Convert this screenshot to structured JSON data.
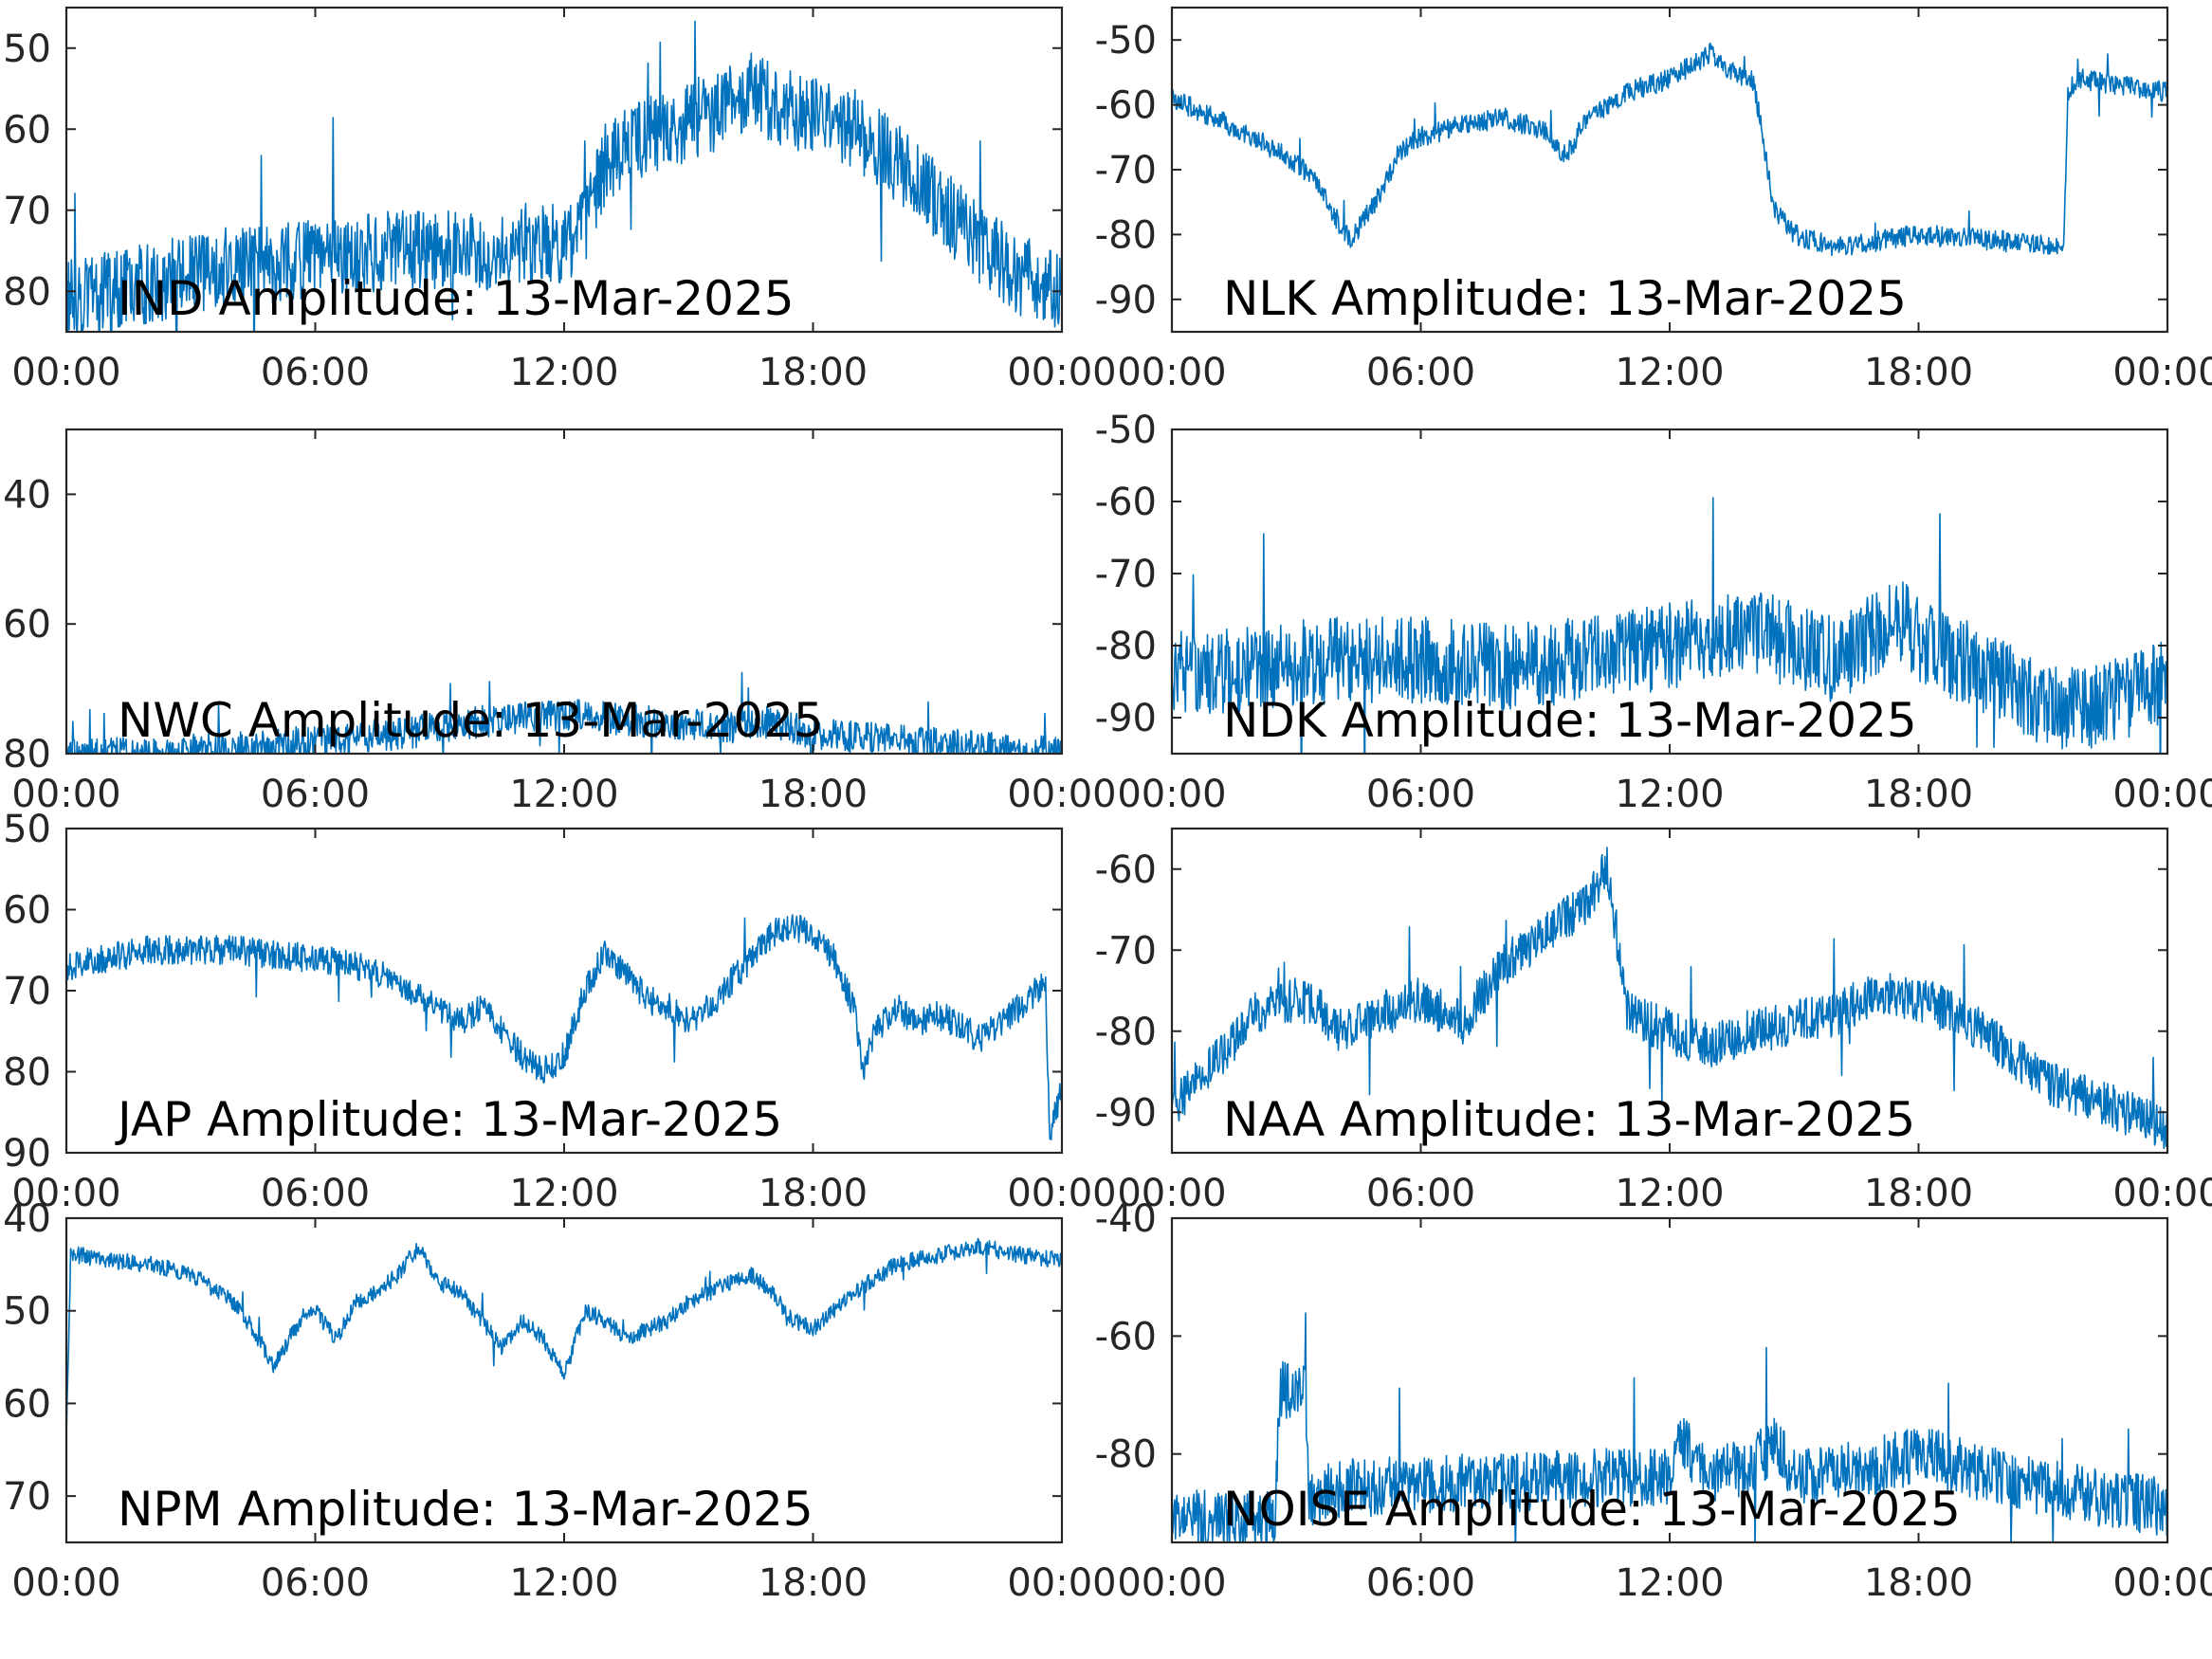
{
  "figure": {
    "line_color": "#0072BD",
    "axis_color": "#262626",
    "panel_background": "#ffffff"
  },
  "chart_data": [
    {
      "type": "line",
      "label": "IND Amplitude: 13-Mar-2025",
      "xticks": [
        "00:00",
        "06:00",
        "12:00",
        "18:00",
        "00:00"
      ],
      "xlim_hours": [
        0,
        24
      ],
      "yticks": [
        "50",
        "60",
        "70",
        "80"
      ],
      "ylim": [
        -85,
        -45
      ],
      "noise": 5,
      "x": [
        0,
        2,
        4,
        6,
        8,
        10,
        11,
        12,
        12.5,
        13,
        13.5,
        14,
        15,
        16,
        16.5,
        17,
        18,
        19,
        20,
        21,
        22,
        23,
        24
      ],
      "y": [
        -81,
        -79,
        -77,
        -76,
        -75,
        -75,
        -74,
        -74,
        -72,
        -64,
        -62,
        -61,
        -59,
        -57,
        -55,
        -57,
        -58,
        -60,
        -64,
        -69,
        -74,
        -78,
        -80
      ]
    },
    {
      "type": "line",
      "label": "NLK Amplitude: 13-Mar-2025",
      "xticks": [
        "00:00",
        "06:00",
        "12:00",
        "18:00",
        "00:00"
      ],
      "xlim_hours": [
        0,
        24
      ],
      "yticks": [
        "-50",
        "-60",
        "-70",
        "-80",
        "-90"
      ],
      "ylim": [
        -95,
        -45
      ],
      "noise": 1.6,
      "x": [
        0,
        1,
        2,
        3,
        3.5,
        4,
        4.3,
        5,
        5.5,
        6,
        7,
        8,
        9,
        9.5,
        10,
        11,
        12,
        12.5,
        13,
        13.5,
        14,
        14.2,
        14.5,
        15,
        16,
        18,
        20,
        21.5,
        21.6,
        21.8,
        23,
        24
      ],
      "y": [
        -59,
        -62,
        -65,
        -69,
        -72,
        -78,
        -81,
        -74,
        -67,
        -65,
        -63,
        -62,
        -64,
        -68,
        -62,
        -58,
        -56,
        -54,
        -52,
        -55,
        -56,
        -63,
        -76,
        -80,
        -82,
        -80,
        -81,
        -82,
        -58,
        -56,
        -57,
        -58
      ]
    },
    {
      "type": "line",
      "label": "NWC Amplitude: 13-Mar-2025",
      "xticks": [
        "00:00",
        "06:00",
        "12:00",
        "18:00",
        "00:00"
      ],
      "xlim_hours": [
        0,
        24
      ],
      "yticks": [
        "40",
        "60",
        "80"
      ],
      "ylim": [
        -80,
        -30
      ],
      "noise": 2.5,
      "x": [
        0,
        2,
        4,
        6,
        8,
        10,
        12,
        14,
        16,
        17,
        18,
        20,
        22,
        24
      ],
      "y": [
        -80,
        -80,
        -79,
        -78,
        -77,
        -75,
        -74,
        -75,
        -76,
        -75,
        -77,
        -78,
        -79,
        -80
      ]
    },
    {
      "type": "line",
      "label": "NDK Amplitude: 13-Mar-2025",
      "xticks": [
        "00:00",
        "06:00",
        "12:00",
        "18:00",
        "00:00"
      ],
      "xlim_hours": [
        0,
        24
      ],
      "yticks": [
        "-50",
        "-60",
        "-70",
        "-80",
        "-90"
      ],
      "ylim": [
        -95,
        -50
      ],
      "noise": 6,
      "x": [
        0,
        2,
        4,
        6,
        8,
        10,
        12,
        13,
        14,
        15,
        16,
        17,
        17.5,
        18,
        19,
        20,
        21,
        22,
        23,
        24
      ],
      "y": [
        -84,
        -83,
        -82,
        -82,
        -83,
        -82,
        -80,
        -79,
        -78,
        -80,
        -82,
        -78,
        -76,
        -79,
        -82,
        -85,
        -88,
        -89,
        -87,
        -85
      ]
    },
    {
      "type": "line",
      "label": "JAP Amplitude: 13-Mar-2025",
      "xticks": [
        "00:00",
        "06:00",
        "12:00",
        "18:00",
        "00:00"
      ],
      "xlim_hours": [
        0,
        24
      ],
      "yticks": [
        "50",
        "60",
        "70",
        "80",
        "90"
      ],
      "ylim": [
        -90,
        -50
      ],
      "noise": 1.8,
      "x": [
        0,
        1,
        2,
        3,
        4,
        5,
        6,
        7,
        8,
        9,
        9.5,
        10,
        10.5,
        11,
        11.5,
        12,
        12.5,
        13,
        13.5,
        14,
        14.5,
        15,
        15.5,
        16,
        17,
        17.5,
        18,
        18.5,
        19,
        19.2,
        19.5,
        20,
        20.5,
        21,
        21.5,
        22,
        23,
        23.6,
        23.7,
        24
      ],
      "y": [
        -67,
        -66,
        -65,
        -65,
        -65,
        -65.5,
        -66,
        -67,
        -69,
        -72,
        -74,
        -72,
        -75,
        -78,
        -80,
        -78,
        -70,
        -65,
        -68,
        -71,
        -72,
        -74,
        -72,
        -69,
        -63,
        -62,
        -63,
        -66,
        -72,
        -80,
        -75,
        -72,
        -74,
        -73,
        -74,
        -76,
        -72,
        -69,
        -88,
        -82
      ]
    },
    {
      "type": "line",
      "label": "NAA Amplitude: 13-Mar-2025",
      "xticks": [
        "00:00",
        "06:00",
        "12:00",
        "18:00",
        "00:00"
      ],
      "xlim_hours": [
        0,
        24
      ],
      "yticks": [
        "-60",
        "-70",
        "-80",
        "-90"
      ],
      "ylim": [
        -95,
        -55
      ],
      "noise": 2.8,
      "x": [
        0,
        0.5,
        1,
        2,
        3,
        3.5,
        4,
        5,
        6,
        7,
        8,
        9,
        10,
        10.5,
        11,
        12,
        13,
        14,
        15,
        16,
        17,
        18,
        19,
        20,
        21,
        22,
        23,
        24
      ],
      "y": [
        -90,
        -86,
        -84,
        -78,
        -76,
        -77,
        -80,
        -78,
        -76,
        -79,
        -72,
        -68,
        -64,
        -60,
        -78,
        -80,
        -82,
        -80,
        -79,
        -78,
        -75,
        -76,
        -78,
        -82,
        -86,
        -88,
        -90,
        -92
      ]
    },
    {
      "type": "line",
      "label": "NPM Amplitude: 13-Mar-2025",
      "xticks": [
        "00:00",
        "06:00",
        "12:00",
        "18:00",
        "00:00"
      ],
      "xlim_hours": [
        0,
        24
      ],
      "yticks": [
        "40",
        "50",
        "60",
        "70"
      ],
      "ylim": [
        -75,
        -40
      ],
      "noise": 0.9,
      "x": [
        0,
        0.1,
        0.3,
        1,
        2,
        3,
        4,
        4.5,
        5,
        5.5,
        6,
        6.5,
        7,
        7.5,
        8,
        8.5,
        9,
        9.5,
        10,
        10.5,
        11,
        11.5,
        12,
        12.5,
        13,
        13.5,
        14,
        14.5,
        15,
        16,
        16.5,
        17,
        17.5,
        18,
        19,
        20,
        21,
        22,
        23,
        24
      ],
      "y": [
        -64,
        -44,
        -44,
        -44.5,
        -45,
        -46,
        -49,
        -52,
        -56,
        -52,
        -50,
        -53,
        -49,
        -48,
        -46,
        -43,
        -47,
        -48,
        -51,
        -54,
        -51,
        -53,
        -57,
        -50,
        -51,
        -53,
        -52,
        -51,
        -49,
        -47,
        -46,
        -48,
        -51,
        -52,
        -48,
        -45,
        -44,
        -43,
        -44,
        -44.5
      ]
    },
    {
      "type": "line",
      "label": "NOISE Amplitude: 13-Mar-2025",
      "xticks": [
        "00:00",
        "06:00",
        "12:00",
        "18:00",
        "00:00"
      ],
      "xlim_hours": [
        0,
        24
      ],
      "yticks": [
        "-40",
        "-60",
        "-80"
      ],
      "ylim": [
        -95,
        -40
      ],
      "noise": 5,
      "x": [
        0,
        1,
        2,
        2.5,
        2.6,
        3.2,
        3.3,
        4,
        6,
        8,
        10,
        12,
        12.3,
        13,
        14,
        14.5,
        15,
        16,
        17,
        18,
        20,
        22,
        24
      ],
      "y": [
        -90,
        -91,
        -91,
        -90,
        -69,
        -69,
        -88,
        -86,
        -85,
        -85,
        -84,
        -84,
        -78,
        -84,
        -82,
        -78,
        -84,
        -83,
        -82,
        -80,
        -84,
        -87,
        -89
      ]
    }
  ]
}
